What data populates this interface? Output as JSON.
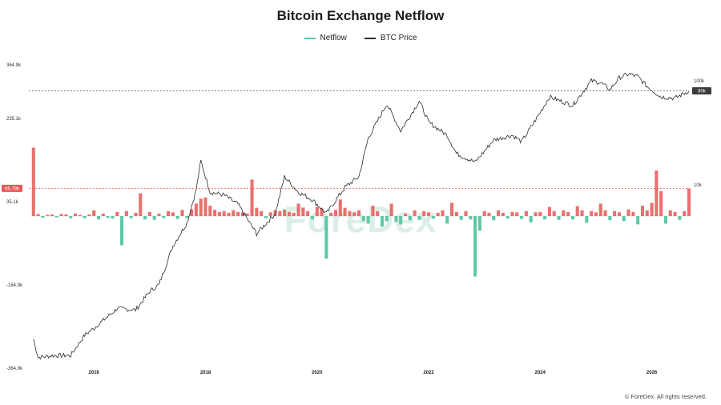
{
  "title": "Bitcoin Exchange Netflow",
  "legend": {
    "netflow": "Netflow",
    "price": "BTC Price"
  },
  "footer": "© ForeDex. All rights reserved.",
  "watermark": "ForeDex",
  "colors": {
    "inflow": "#e8706e",
    "outflow": "#5cc9a2",
    "price": "#2b2b2b",
    "badge_red": "#e35a5a",
    "badge_dark": "#3a3a3a"
  },
  "chart_data": {
    "type": "bar+line",
    "title": "Bitcoin Exchange Netflow",
    "left_axis": {
      "ticks": [
        "364.9k",
        "235.1k",
        "35.1k",
        "-164.9k",
        "-364.9k"
      ],
      "range": [
        -364900,
        364900
      ]
    },
    "right_axis": {
      "ticks": [
        "100k",
        "10k"
      ]
    },
    "x_axis": {
      "ticks": [
        "2016",
        "2018",
        "2020",
        "2022",
        "2024",
        "2026"
      ],
      "range": [
        "2014-11",
        "2026-09"
      ]
    },
    "markers": [
      {
        "label": "66.79k",
        "axis": "left",
        "value": 66790,
        "style": "dashed-red"
      },
      {
        "label": "80k",
        "axis": "right",
        "value": 80000,
        "style": "dashed-dark"
      }
    ],
    "series": [
      {
        "name": "BTC Price",
        "type": "line",
        "points": [
          [
            "2014-12",
            330
          ],
          [
            "2015-01",
            220
          ],
          [
            "2015-04",
            230
          ],
          [
            "2015-08",
            230
          ],
          [
            "2015-11",
            360
          ],
          [
            "2016-01",
            420
          ],
          [
            "2016-06",
            650
          ],
          [
            "2016-10",
            630
          ],
          [
            "2017-01",
            950
          ],
          [
            "2017-03",
            1100
          ],
          [
            "2017-06",
            2600
          ],
          [
            "2017-09",
            4300
          ],
          [
            "2017-11",
            9000
          ],
          [
            "2017-12",
            17000
          ],
          [
            "2018-02",
            8500
          ],
          [
            "2018-05",
            8000
          ],
          [
            "2018-08",
            6500
          ],
          [
            "2018-12",
            3400
          ],
          [
            "2019-04",
            5300
          ],
          [
            "2019-06",
            12000
          ],
          [
            "2019-09",
            8500
          ],
          [
            "2019-12",
            7200
          ],
          [
            "2020-03",
            5300
          ],
          [
            "2020-07",
            9500
          ],
          [
            "2020-10",
            12000
          ],
          [
            "2020-12",
            28000
          ],
          [
            "2021-04",
            60000
          ],
          [
            "2021-07",
            33000
          ],
          [
            "2021-11",
            64000
          ],
          [
            "2022-01",
            40000
          ],
          [
            "2022-05",
            30000
          ],
          [
            "2022-07",
            20000
          ],
          [
            "2022-11",
            16500
          ],
          [
            "2023-03",
            27000
          ],
          [
            "2023-07",
            30000
          ],
          [
            "2023-09",
            26000
          ],
          [
            "2023-12",
            42000
          ],
          [
            "2024-03",
            70000
          ],
          [
            "2024-08",
            58000
          ],
          [
            "2024-12",
            100000
          ],
          [
            "2025-02",
            96000
          ],
          [
            "2025-04",
            82000
          ],
          [
            "2025-06",
            107000
          ],
          [
            "2025-08",
            116000
          ],
          [
            "2025-10",
            110000
          ],
          [
            "2025-12",
            88000
          ],
          [
            "2026-03",
            70000
          ],
          [
            "2026-06",
            68000
          ],
          [
            "2026-09",
            80000
          ]
        ]
      },
      {
        "name": "Netflow",
        "type": "bar",
        "note": "monthly net exchange flow in BTC",
        "values": [
          [
            "2014-12",
            165000
          ],
          [
            "2015-01",
            5000
          ],
          [
            "2015-02",
            -4000
          ],
          [
            "2015-03",
            3000
          ],
          [
            "2015-04",
            4000
          ],
          [
            "2015-05",
            -3000
          ],
          [
            "2015-06",
            5000
          ],
          [
            "2015-07",
            4000
          ],
          [
            "2015-08",
            -5000
          ],
          [
            "2015-09",
            6000
          ],
          [
            "2015-10",
            3000
          ],
          [
            "2015-11",
            -5000
          ],
          [
            "2015-12",
            4000
          ],
          [
            "2016-01",
            14000
          ],
          [
            "2016-02",
            -8000
          ],
          [
            "2016-03",
            6000
          ],
          [
            "2016-04",
            -4000
          ],
          [
            "2016-05",
            -6000
          ],
          [
            "2016-06",
            10000
          ],
          [
            "2016-07",
            -70000
          ],
          [
            "2016-08",
            12000
          ],
          [
            "2016-09",
            -5000
          ],
          [
            "2016-10",
            8000
          ],
          [
            "2016-11",
            55000
          ],
          [
            "2016-12",
            -8000
          ],
          [
            "2017-01",
            10000
          ],
          [
            "2017-02",
            -9000
          ],
          [
            "2017-03",
            6000
          ],
          [
            "2017-04",
            -5000
          ],
          [
            "2017-05",
            12000
          ],
          [
            "2017-06",
            9000
          ],
          [
            "2017-07",
            -7000
          ],
          [
            "2017-08",
            15000
          ],
          [
            "2017-09",
            -5000
          ],
          [
            "2017-10",
            16000
          ],
          [
            "2017-11",
            30000
          ],
          [
            "2017-12",
            42000
          ],
          [
            "2018-01",
            45000
          ],
          [
            "2018-02",
            25000
          ],
          [
            "2018-03",
            15000
          ],
          [
            "2018-04",
            10000
          ],
          [
            "2018-05",
            12000
          ],
          [
            "2018-06",
            8000
          ],
          [
            "2018-07",
            14000
          ],
          [
            "2018-08",
            10000
          ],
          [
            "2018-09",
            9000
          ],
          [
            "2018-10",
            6000
          ],
          [
            "2018-11",
            88000
          ],
          [
            "2018-12",
            20000
          ],
          [
            "2019-01",
            12000
          ],
          [
            "2019-02",
            -5000
          ],
          [
            "2019-03",
            9000
          ],
          [
            "2019-04",
            14000
          ],
          [
            "2019-05",
            12000
          ],
          [
            "2019-06",
            16000
          ],
          [
            "2019-07",
            10000
          ],
          [
            "2019-08",
            8000
          ],
          [
            "2019-09",
            30000
          ],
          [
            "2019-10",
            20000
          ],
          [
            "2019-11",
            12000
          ],
          [
            "2019-12",
            -8000
          ],
          [
            "2020-01",
            22000
          ],
          [
            "2020-02",
            18000
          ],
          [
            "2020-03",
            -102000
          ],
          [
            "2020-04",
            8000
          ],
          [
            "2020-05",
            15000
          ],
          [
            "2020-06",
            40000
          ],
          [
            "2020-07",
            20000
          ],
          [
            "2020-08",
            12000
          ],
          [
            "2020-09",
            9000
          ],
          [
            "2020-10",
            14000
          ],
          [
            "2020-11",
            -12000
          ],
          [
            "2020-12",
            -18000
          ],
          [
            "2021-01",
            25000
          ],
          [
            "2021-02",
            12000
          ],
          [
            "2021-03",
            -25000
          ],
          [
            "2021-04",
            -12000
          ],
          [
            "2021-05",
            30000
          ],
          [
            "2021-06",
            -14000
          ],
          [
            "2021-07",
            -20000
          ],
          [
            "2021-08",
            6000
          ],
          [
            "2021-09",
            -10000
          ],
          [
            "2021-10",
            14000
          ],
          [
            "2021-11",
            -9000
          ],
          [
            "2021-12",
            12000
          ],
          [
            "2022-01",
            9000
          ],
          [
            "2022-02",
            -6000
          ],
          [
            "2022-03",
            8000
          ],
          [
            "2022-04",
            14000
          ],
          [
            "2022-05",
            -18000
          ],
          [
            "2022-06",
            32000
          ],
          [
            "2022-07",
            10000
          ],
          [
            "2022-08",
            -9000
          ],
          [
            "2022-09",
            12000
          ],
          [
            "2022-10",
            -8000
          ],
          [
            "2022-11",
            -145000
          ],
          [
            "2022-12",
            -35000
          ],
          [
            "2023-01",
            12000
          ],
          [
            "2023-02",
            8000
          ],
          [
            "2023-03",
            -10000
          ],
          [
            "2023-04",
            14000
          ],
          [
            "2023-05",
            8000
          ],
          [
            "2023-06",
            -6000
          ],
          [
            "2023-07",
            10000
          ],
          [
            "2023-08",
            9000
          ],
          [
            "2023-09",
            -7000
          ],
          [
            "2023-10",
            12000
          ],
          [
            "2023-11",
            -15000
          ],
          [
            "2023-12",
            9000
          ],
          [
            "2024-01",
            10000
          ],
          [
            "2024-02",
            -8000
          ],
          [
            "2024-03",
            22000
          ],
          [
            "2024-04",
            12000
          ],
          [
            "2024-05",
            -9000
          ],
          [
            "2024-06",
            14000
          ],
          [
            "2024-07",
            10000
          ],
          [
            "2024-08",
            -8000
          ],
          [
            "2024-09",
            24000
          ],
          [
            "2024-10",
            14000
          ],
          [
            "2024-11",
            -16000
          ],
          [
            "2024-12",
            12000
          ],
          [
            "2025-01",
            9000
          ],
          [
            "2025-02",
            30000
          ],
          [
            "2025-03",
            14000
          ],
          [
            "2025-04",
            -10000
          ],
          [
            "2025-05",
            12000
          ],
          [
            "2025-06",
            9000
          ],
          [
            "2025-07",
            -12000
          ],
          [
            "2025-08",
            16000
          ],
          [
            "2025-09",
            10000
          ],
          [
            "2025-10",
            -20000
          ],
          [
            "2025-11",
            25000
          ],
          [
            "2025-12",
            14000
          ],
          [
            "2026-01",
            32000
          ],
          [
            "2026-02",
            110000
          ],
          [
            "2026-03",
            60000
          ],
          [
            "2026-04",
            -18000
          ],
          [
            "2026-05",
            14000
          ],
          [
            "2026-06",
            10000
          ],
          [
            "2026-07",
            -9000
          ],
          [
            "2026-08",
            12000
          ],
          [
            "2026-09",
            66790
          ]
        ]
      }
    ],
    "grid": false,
    "legend_position": "top-center"
  }
}
